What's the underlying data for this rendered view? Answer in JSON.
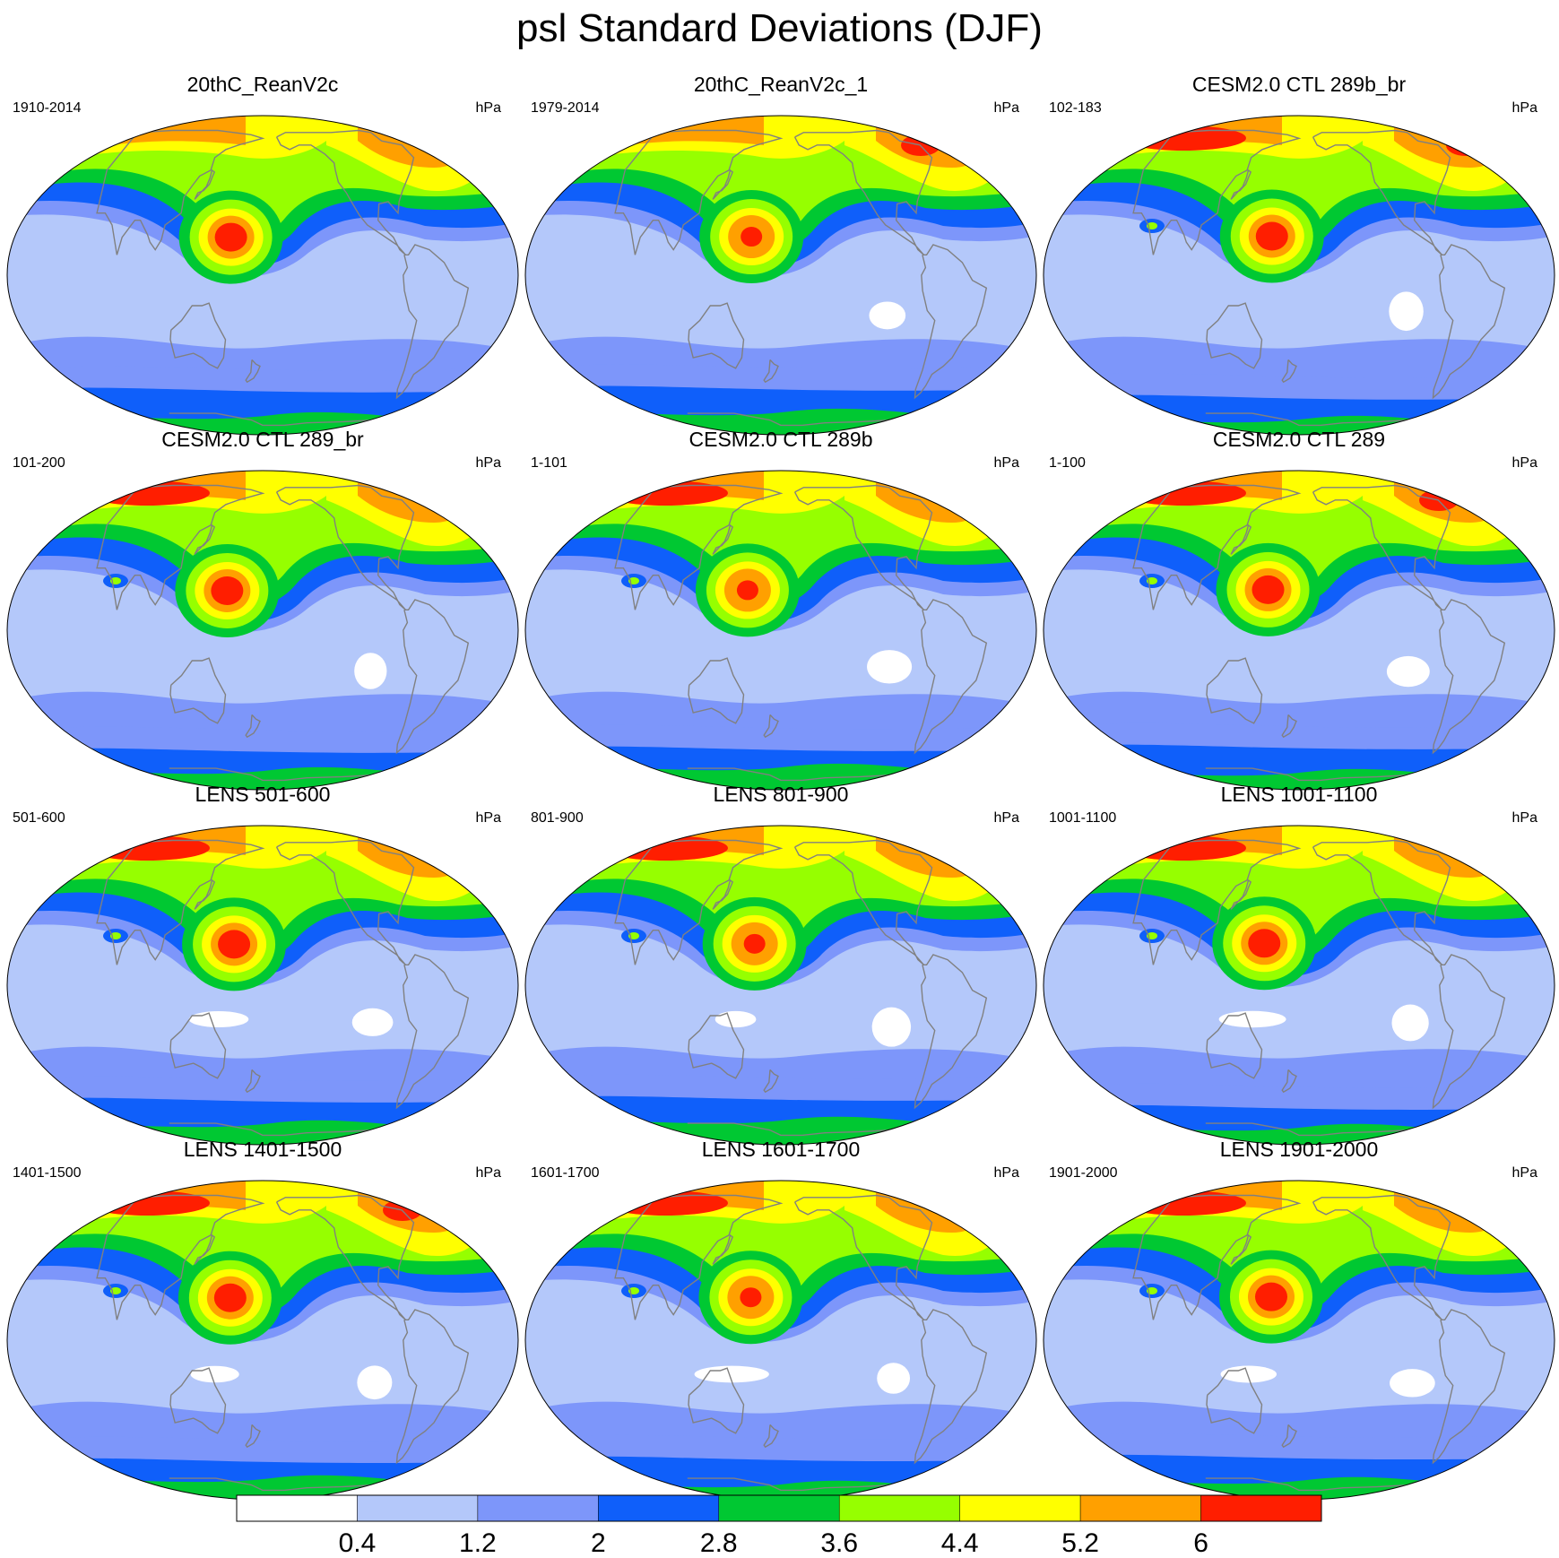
{
  "title": "psl Standard Deviations (DJF)",
  "unit": "hPa",
  "panels": [
    {
      "title": "20thC_ReanV2c",
      "period": "1910-2014",
      "var": 0
    },
    {
      "title": "20thC_ReanV2c_1",
      "period": "1979-2014",
      "var": 1
    },
    {
      "title": "CESM2.0 CTL 289b_br",
      "period": "102-183",
      "var": 2
    },
    {
      "title": "CESM2.0 CTL 289_br",
      "period": "101-200",
      "var": 3
    },
    {
      "title": "CESM2.0 CTL 289b",
      "period": "1-101",
      "var": 4
    },
    {
      "title": "CESM2.0 CTL 289",
      "period": "1-100",
      "var": 5
    },
    {
      "title": "LENS 501-600",
      "period": "501-600",
      "var": 6
    },
    {
      "title": "LENS 801-900",
      "period": "801-900",
      "var": 7
    },
    {
      "title": "LENS 1001-1100",
      "period": "1001-1100",
      "var": 8
    },
    {
      "title": "LENS 1401-1500",
      "period": "1401-1500",
      "var": 9
    },
    {
      "title": "LENS 1601-1700",
      "period": "1601-1700",
      "var": 10
    },
    {
      "title": "LENS 1901-2000",
      "period": "1901-2000",
      "var": 11
    }
  ],
  "colorbar": {
    "levels": [
      0.4,
      1.2,
      2,
      2.8,
      3.6,
      4.4,
      5.2,
      6
    ],
    "labels": [
      "0.4",
      "1.2",
      "2",
      "2.8",
      "3.6",
      "4.4",
      "5.2",
      "6"
    ],
    "colors": [
      "#ffffff",
      "#b4c8fa",
      "#7d96fa",
      "#0f5ffa",
      "#00c832",
      "#96ff00",
      "#ffff00",
      "#ffa000",
      "#ff1e00"
    ]
  },
  "projection": "Robinson, Pacific-centered",
  "coastline_color": "#808080"
}
